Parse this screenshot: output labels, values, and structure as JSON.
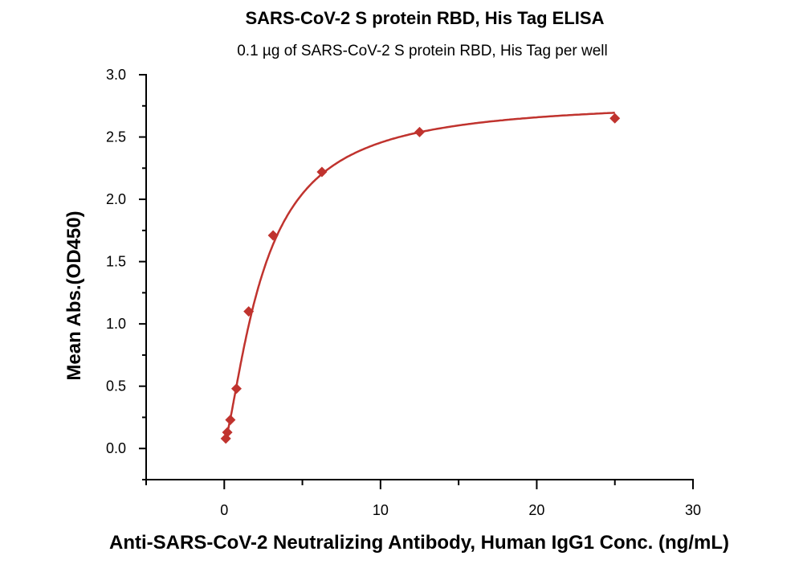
{
  "chart_data": {
    "type": "scatter",
    "title": "SARS-CoV-2 S protein RBD, His Tag ELISA",
    "subtitle": "0.1 µg of SARS-CoV-2 S protein RBD, His Tag per well",
    "xlabel": "Anti-SARS-CoV-2 Neutralizing Antibody, Human IgG1 Conc. (ng/mL)",
    "ylabel": "Mean Abs.(OD450)",
    "xlim": [
      -5,
      30
    ],
    "ylim": [
      -0.25,
      3.0
    ],
    "xticks": [
      "0",
      "10",
      "20",
      "30"
    ],
    "yticks": [
      "0.0",
      "0.5",
      "1.0",
      "1.5",
      "2.0",
      "2.5",
      "3.0"
    ],
    "grid": false,
    "color": "#c0332e",
    "series": [
      {
        "marker": "diamond",
        "x": [
          0.098,
          0.195,
          0.39,
          0.78,
          1.5625,
          3.125,
          6.25,
          12.5,
          25
        ],
        "y": [
          0.08,
          0.13,
          0.23,
          0.48,
          1.1,
          1.71,
          2.22,
          2.54,
          2.65
        ]
      }
    ],
    "fit": {
      "model": "4PL",
      "bottom": 0.05,
      "top": 2.8,
      "ec50": 2.5,
      "hill": 1.4
    }
  }
}
